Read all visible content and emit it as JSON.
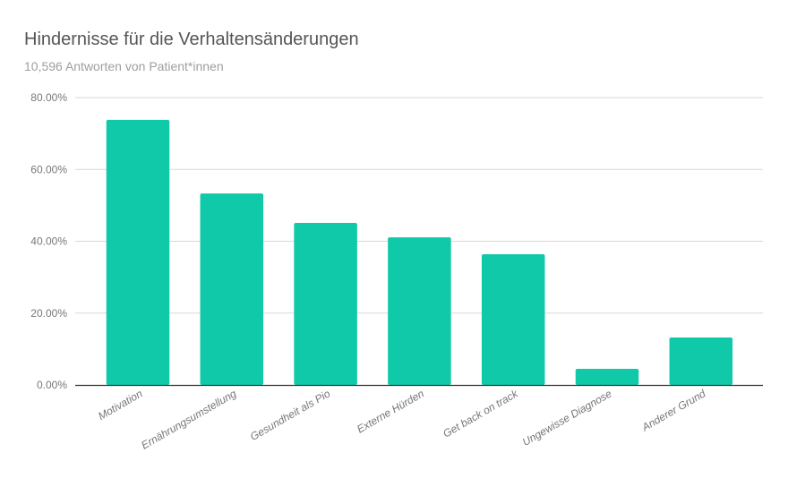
{
  "chart_data": {
    "type": "bar",
    "title": "Hindernisse für die Verhaltensänderungen",
    "subtitle": "10,596 Antworten von Patient*innen",
    "xlabel": "",
    "ylabel": "",
    "categories": [
      "Motivation",
      "Ernährungsumstellung",
      "Gesundheit als Pio",
      "Externe Hürden",
      "Get back on track",
      "Ungewisse Diagnose",
      "Anderer Grund"
    ],
    "values": [
      73.8,
      53.3,
      45.1,
      41.1,
      36.4,
      4.5,
      13.2
    ],
    "ylim": [
      0,
      80
    ],
    "yticks": [
      "0.00%",
      "20.00%",
      "40.00%",
      "60.00%",
      "80.00%"
    ],
    "grid": true,
    "legend": "none",
    "bar_color": "#0fc9a8"
  }
}
